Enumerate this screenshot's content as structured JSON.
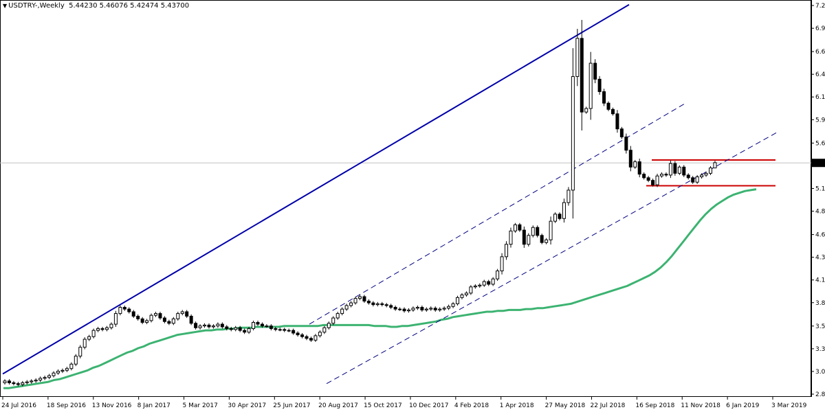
{
  "header": {
    "symbol": "USDTRY-,Weekly",
    "ohlc": "5.44230 5.46076 5.42474 5.43700",
    "collapse_icon": "triangle-down-icon"
  },
  "chart_data": {
    "type": "candlestick",
    "symbol": "USDTRY-",
    "timeframe": "Weekly",
    "ohlc_last": {
      "open": 5.4423,
      "high": 5.46076,
      "low": 5.42474,
      "close": 5.437
    },
    "current_price_label": "5.43700",
    "y_ticks": [
      "7.21040",
      "6.95365",
      "6.69115",
      "6.43540",
      "6.17990",
      "5.92390",
      "5.66040",
      "5.43700",
      "5.14890",
      "4.89315",
      "4.62965",
      "4.37390",
      "4.11815",
      "3.86240",
      "3.59890",
      "3.34315",
      "3.08740",
      "2.83165"
    ],
    "ylim": [
      2.83165,
      7.2104
    ],
    "x_ticks": [
      "24 Jul 2016",
      "18 Sep 2016",
      "13 Nov 2016",
      "8 Jan 2017",
      "5 Mar 2017",
      "30 Apr 2017",
      "25 Jun 2017",
      "20 Aug 2017",
      "15 Oct 2017",
      "10 Dec 2017",
      "4 Feb 2018",
      "1 Apr 2018",
      "27 May 2018",
      "22 Jul 2018",
      "16 Sep 2018",
      "11 Nov 2018",
      "6 Jan 2019",
      "3 Mar 2019"
    ],
    "closes": [
      2.98,
      2.96,
      2.95,
      2.94,
      2.96,
      2.97,
      2.98,
      2.99,
      3.01,
      3.02,
      3.04,
      3.07,
      3.09,
      3.1,
      3.12,
      3.17,
      3.26,
      3.36,
      3.45,
      3.48,
      3.55,
      3.57,
      3.56,
      3.58,
      3.62,
      3.74,
      3.81,
      3.79,
      3.76,
      3.71,
      3.68,
      3.64,
      3.66,
      3.72,
      3.74,
      3.69,
      3.65,
      3.63,
      3.68,
      3.74,
      3.76,
      3.71,
      3.63,
      3.58,
      3.6,
      3.61,
      3.59,
      3.6,
      3.62,
      3.59,
      3.57,
      3.56,
      3.58,
      3.55,
      3.53,
      3.57,
      3.64,
      3.62,
      3.6,
      3.6,
      3.57,
      3.56,
      3.56,
      3.55,
      3.55,
      3.52,
      3.5,
      3.48,
      3.46,
      3.44,
      3.49,
      3.53,
      3.58,
      3.63,
      3.69,
      3.74,
      3.79,
      3.83,
      3.86,
      3.91,
      3.93,
      3.88,
      3.86,
      3.84,
      3.85,
      3.84,
      3.83,
      3.81,
      3.79,
      3.79,
      3.77,
      3.78,
      3.8,
      3.81,
      3.78,
      3.79,
      3.8,
      3.78,
      3.79,
      3.8,
      3.82,
      3.85,
      3.92,
      3.95,
      3.97,
      4.04,
      4.05,
      4.06,
      4.1,
      4.07,
      4.13,
      4.22,
      4.38,
      4.52,
      4.67,
      4.74,
      4.68,
      4.52,
      4.62,
      4.71,
      4.62,
      4.54,
      4.57,
      4.78,
      4.86,
      4.81,
      4.99,
      5.13,
      6.41,
      6.84,
      6.01,
      6.05,
      6.56,
      6.38,
      6.24,
      6.11,
      6.04,
      5.99,
      5.82,
      5.73,
      5.58,
      5.39,
      5.45,
      5.31,
      5.27,
      5.24,
      5.19,
      5.29,
      5.31,
      5.3,
      5.43,
      5.32,
      5.39,
      5.3,
      5.27,
      5.22,
      5.28,
      5.3,
      5.32,
      5.38,
      5.44
    ],
    "moving_average": {
      "type": "line",
      "color": "#3cb371",
      "values": [
        2.9,
        2.9,
        2.91,
        2.92,
        2.93,
        2.94,
        2.95,
        2.96,
        2.97,
        2.99,
        3.0,
        3.02,
        3.04,
        3.06,
        3.08,
        3.1,
        3.13,
        3.15,
        3.18,
        3.21,
        3.24,
        3.27,
        3.3,
        3.32,
        3.35,
        3.37,
        3.4,
        3.42,
        3.44,
        3.46,
        3.48,
        3.5,
        3.51,
        3.52,
        3.53,
        3.54,
        3.55,
        3.55,
        3.56,
        3.56,
        3.57,
        3.57,
        3.58,
        3.58,
        3.58,
        3.59,
        3.59,
        3.59,
        3.59,
        3.59,
        3.6,
        3.6,
        3.6,
        3.6,
        3.6,
        3.6,
        3.6,
        3.61,
        3.61,
        3.61,
        3.61,
        3.61,
        3.61,
        3.61,
        3.61,
        3.61,
        3.6,
        3.6,
        3.6,
        3.59,
        3.59,
        3.6,
        3.6,
        3.61,
        3.62,
        3.63,
        3.64,
        3.65,
        3.67,
        3.68,
        3.7,
        3.71,
        3.72,
        3.73,
        3.74,
        3.75,
        3.76,
        3.76,
        3.77,
        3.77,
        3.78,
        3.78,
        3.78,
        3.79,
        3.79,
        3.8,
        3.8,
        3.81,
        3.82,
        3.83,
        3.84,
        3.85,
        3.87,
        3.89,
        3.91,
        3.93,
        3.95,
        3.97,
        3.99,
        4.01,
        4.03,
        4.05,
        4.08,
        4.11,
        4.14,
        4.17,
        4.21,
        4.26,
        4.32,
        4.39,
        4.47,
        4.55,
        4.63,
        4.71,
        4.79,
        4.86,
        4.92,
        4.97,
        5.01,
        5.05,
        5.08,
        5.1,
        5.12,
        5.13,
        5.14
      ]
    },
    "trend_lines": [
      {
        "color": "#0000aa",
        "style": "solid",
        "from": {
          "x": "24 Jul 2016",
          "y": 3.06
        },
        "to": {
          "x": "16 Sep 2018",
          "y": 7.22
        }
      },
      {
        "color": "#000080",
        "style": "dashed",
        "from": {
          "x": "20 Aug 2017",
          "y": 3.62
        },
        "to": {
          "x": "16 Sep 2018",
          "y": 6.1
        }
      },
      {
        "color": "#000080",
        "style": "dashed",
        "from": {
          "x": "20 Aug 2017",
          "y": 2.95
        },
        "to": {
          "x": "3 Mar 2019",
          "y": 5.78
        }
      }
    ],
    "horizontal_lines": [
      {
        "color": "#cc0000",
        "y": 5.47
      },
      {
        "color": "#cc0000",
        "y": 5.18
      },
      {
        "color": "#c0c0c0",
        "y": 5.437
      }
    ],
    "grid": false,
    "legend": "none"
  }
}
